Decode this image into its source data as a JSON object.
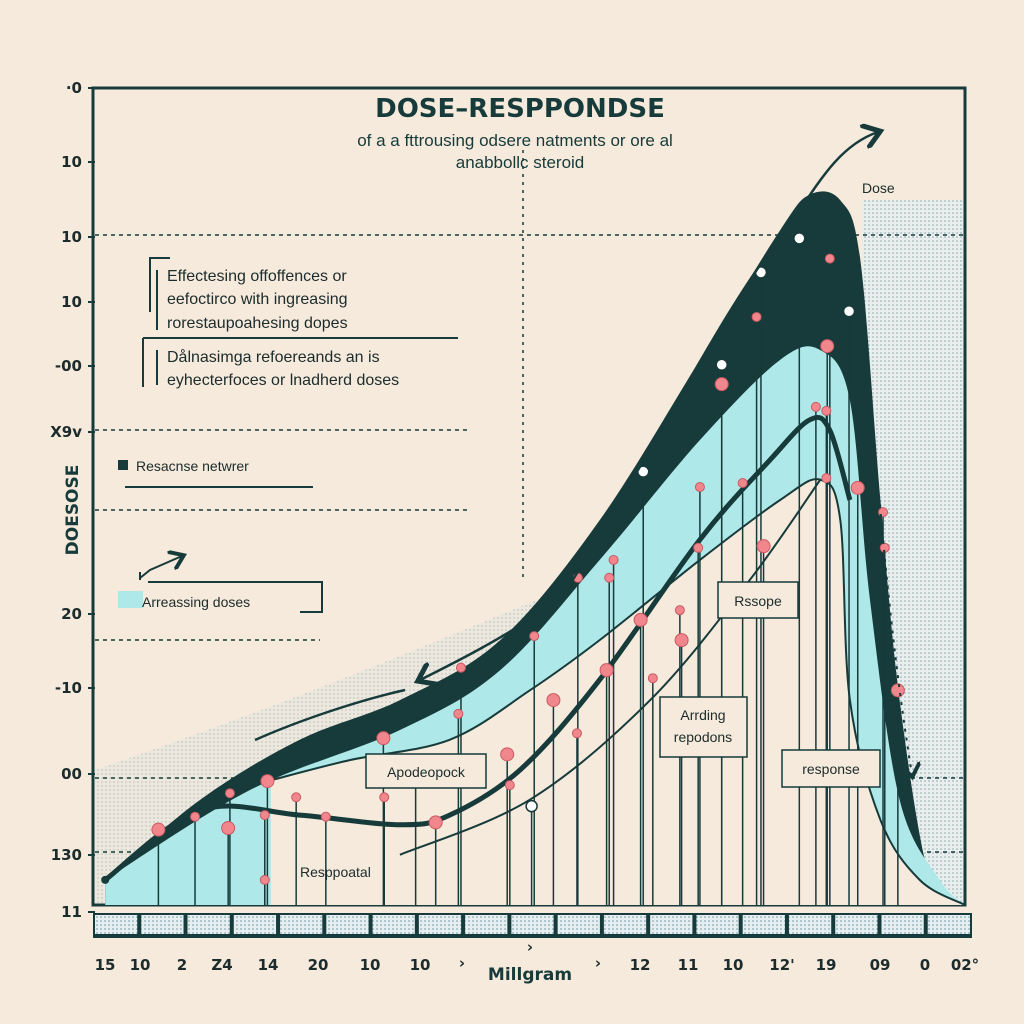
{
  "colors": {
    "background": "#f5eadb",
    "dark": "#173a3b",
    "cyan": "#aee8e8",
    "marker": "#f2868d",
    "stipple": "#7fa8b8"
  },
  "chart_data": {
    "type": "area",
    "title": "DOSE–RESPPONDSE",
    "subtitle_line1": "of a a fttrousing odsere natments or ore al",
    "subtitle_line2": "anabbollc steroid",
    "xlabel": "Millgram",
    "ylabel": "DOESOSE",
    "x_tick_labels": [
      "15",
      "10",
      "2",
      "Z4",
      "14",
      "20",
      "10",
      "10",
      "›",
      "›",
      "›",
      "12",
      "11",
      "10",
      "12'",
      "19",
      "09",
      "0",
      "02°"
    ],
    "y_tick_labels": [
      "·0",
      "10",
      "10",
      "10",
      "-00",
      "X9v",
      "20",
      "-10",
      "00",
      "130",
      "11"
    ],
    "xlim": [
      0,
      100
    ],
    "ylim": [
      0,
      100
    ],
    "grid": "dashed horizontal lines",
    "series": [
      {
        "role": "dark-band-top",
        "points": [
          [
            1.4,
            3.1
          ],
          [
            12.3,
            13
          ],
          [
            23.7,
            20.4
          ],
          [
            35.2,
            25.3
          ],
          [
            46.7,
            32.7
          ],
          [
            58.1,
            47.5
          ],
          [
            69.6,
            67.3
          ],
          [
            78.8,
            83.3
          ],
          [
            82.2,
            87.7
          ],
          [
            85.7,
            87
          ],
          [
            88,
            79.6
          ],
          [
            90.3,
            50
          ],
          [
            92.5,
            25.3
          ],
          [
            96,
            3.1
          ],
          [
            100,
            0
          ]
        ]
      },
      {
        "role": "cyan-band-top",
        "points": [
          [
            1.4,
            3.1
          ],
          [
            18,
            14.2
          ],
          [
            35.2,
            21.6
          ],
          [
            46.7,
            29
          ],
          [
            58.1,
            42.6
          ],
          [
            69.6,
            57.4
          ],
          [
            78.8,
            67.3
          ],
          [
            83.4,
            68.5
          ],
          [
            86.8,
            62.3
          ],
          [
            89.1,
            37.7
          ],
          [
            92.5,
            13
          ],
          [
            97.1,
            3.1
          ],
          [
            100,
            0
          ]
        ]
      },
      {
        "role": "cyan-band-bottom",
        "points": [
          [
            20.4,
            15.4
          ],
          [
            29.5,
            17.9
          ],
          [
            40.9,
            20.4
          ],
          [
            50.1,
            26.5
          ],
          [
            58.1,
            32.7
          ],
          [
            69.6,
            42.6
          ],
          [
            78.8,
            50
          ],
          [
            83.4,
            52.5
          ],
          [
            85.7,
            47.5
          ],
          [
            86.8,
            25.3
          ],
          [
            90.3,
            10.5
          ],
          [
            94.8,
            3.1
          ],
          [
            100,
            0
          ]
        ]
      },
      {
        "role": "response-line",
        "points": [
          [
            1.4,
            3.1
          ],
          [
            12.3,
            11.7
          ],
          [
            23.7,
            11.1
          ],
          [
            35.2,
            9.9
          ],
          [
            40.9,
            11.1
          ],
          [
            49,
            16.7
          ],
          [
            58.1,
            27.8
          ],
          [
            69.6,
            45.1
          ],
          [
            77.6,
            54.9
          ],
          [
            82.2,
            59.9
          ],
          [
            84.5,
            58.6
          ],
          [
            86.8,
            50
          ]
        ]
      },
      {
        "role": "lower-line",
        "points": [
          [
            35.2,
            6.2
          ],
          [
            50.1,
            13
          ],
          [
            63.9,
            25.3
          ],
          [
            75.3,
            40.1
          ],
          [
            83.4,
            52.5
          ]
        ]
      }
    ],
    "markers": [
      [
        7.5,
        9.3
      ],
      [
        11.7,
        10.9
      ],
      [
        15.7,
        13.8
      ],
      [
        15.5,
        9.5
      ],
      [
        19.7,
        11.1
      ],
      [
        19.7,
        3.1
      ],
      [
        20,
        15.3
      ],
      [
        23.3,
        13.3
      ],
      [
        26.7,
        10.9
      ],
      [
        33.3,
        20.6
      ],
      [
        33.4,
        13.3
      ],
      [
        37,
        16.9
      ],
      [
        39.3,
        10.2
      ],
      [
        41.9,
        23.6
      ],
      [
        42.2,
        29.3
      ],
      [
        47.5,
        18.6
      ],
      [
        47.8,
        14.8
      ],
      [
        50.6,
        33.2
      ],
      [
        52.8,
        25.3
      ],
      [
        55.5,
        21.2
      ],
      [
        55.6,
        40.4
      ],
      [
        58.9,
        29
      ],
      [
        59.2,
        40.4
      ],
      [
        59.7,
        42.6
      ],
      [
        62.8,
        35.2
      ],
      [
        64.2,
        28
      ],
      [
        67.3,
        36.4
      ],
      [
        67.5,
        32.7
      ],
      [
        69.4,
        44.1
      ],
      [
        69.6,
        51.6
      ],
      [
        72.1,
        64.3
      ],
      [
        74.5,
        52.1
      ],
      [
        76.1,
        72.6
      ],
      [
        76.9,
        44.3
      ],
      [
        82.9,
        61.5
      ],
      [
        84.1,
        61
      ],
      [
        84.2,
        69
      ],
      [
        84.5,
        79.8
      ],
      [
        84.1,
        52.7
      ],
      [
        87.7,
        51.5
      ],
      [
        90.6,
        48.5
      ],
      [
        90.8,
        44.1
      ],
      [
        92.3,
        26.5
      ]
    ],
    "open_markers": [
      [
        50.3,
        12.2
      ],
      [
        63.1,
        53.5
      ],
      [
        72.1,
        66.7
      ],
      [
        76.6,
        78.1
      ],
      [
        81,
        82.3
      ],
      [
        86.7,
        73.3
      ]
    ],
    "annotations": {
      "dose": "Dose",
      "box_apodeopock": "Apodeopock",
      "box_arrding_1": "Arrding",
      "box_arrding_2": "repodons",
      "box_rssope": "Rssope",
      "box_response": "response",
      "resppoatal": "Resppoatal"
    },
    "notes": {
      "block1": [
        "Effectesing offoffences or",
        "eefoctirco with ingreasing",
        "rorestaupoahesing dopes"
      ],
      "block2": [
        "Dålnasimga refoereands an  is",
        "eyhecterfoces or lnadherd doses"
      ]
    },
    "legend": [
      {
        "label": "Resacnse netwrer",
        "color": "#173a3b"
      },
      {
        "label": "Arreassing doses",
        "color": "#aee8e8"
      }
    ]
  }
}
